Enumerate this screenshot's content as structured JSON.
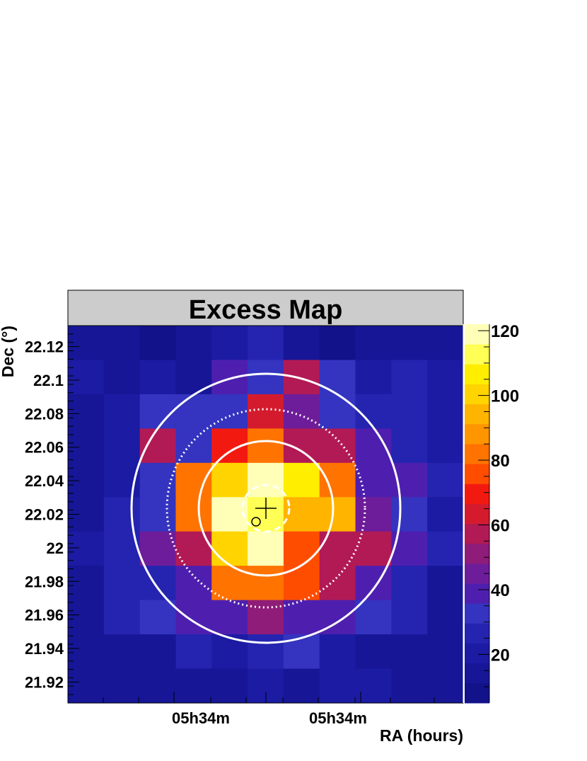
{
  "chart_data": {
    "type": "heatmap",
    "title": "Excess Map",
    "xlabel": "RA (hours)",
    "ylabel": "Dec (°)",
    "x_tick_labels": [
      "05h34m",
      "05h34m"
    ],
    "y_ticks": [
      21.92,
      21.94,
      21.96,
      21.98,
      22,
      22.02,
      22.04,
      22.06,
      22.08,
      22.1,
      22.12
    ],
    "y_tick_labels": [
      "21.92",
      "21.94",
      "21.96",
      "21.98",
      "22",
      "22.02",
      "22.04",
      "22.06",
      "22.08",
      "22.1",
      "22.12"
    ],
    "ylim": [
      21.9075,
      22.1325
    ],
    "n_cols": 11,
    "n_rows": 11,
    "zlim": [
      5,
      122
    ],
    "z_ticks": [
      20,
      40,
      60,
      80,
      100,
      120
    ],
    "z_tick_labels": [
      "20",
      "40",
      "60",
      "80",
      "100",
      "120"
    ],
    "rows_top_to_bottom": [
      [
        12,
        14,
        8,
        14,
        22,
        24,
        14,
        10,
        15,
        16,
        12
      ],
      [
        18,
        14,
        20,
        14,
        38,
        32,
        58,
        32,
        22,
        24,
        20
      ],
      [
        12,
        18,
        34,
        32,
        35,
        62,
        48,
        33,
        28,
        24,
        20
      ],
      [
        12,
        18,
        58,
        34,
        68,
        85,
        60,
        60,
        36,
        24,
        18
      ],
      [
        14,
        22,
        34,
        80,
        100,
        122,
        105,
        80,
        40,
        36,
        25
      ],
      [
        16,
        26,
        34,
        80,
        122,
        112,
        95,
        95,
        48,
        34,
        18
      ],
      [
        20,
        26,
        46,
        60,
        100,
        122,
        75,
        55,
        55,
        36,
        24
      ],
      [
        14,
        28,
        28,
        36,
        80,
        85,
        75,
        56,
        38,
        26,
        16
      ],
      [
        16,
        28,
        32,
        36,
        36,
        50,
        36,
        36,
        34,
        24,
        14
      ],
      [
        14,
        16,
        16,
        28,
        20,
        28,
        34,
        20,
        12,
        16,
        12
      ],
      [
        16,
        16,
        16,
        16,
        14,
        20,
        14,
        20,
        18,
        14,
        16
      ]
    ],
    "overlays": {
      "center_marker": "cross",
      "source_marker": "circle",
      "contours": [
        "solid-outer",
        "dotted",
        "solid-inner",
        "dashed-core"
      ]
    },
    "palette": [
      "#12128a",
      "#161697",
      "#1b1ba3",
      "#2424b0",
      "#3434c0",
      "#4e1faf",
      "#6e1d9a",
      "#8e1c78",
      "#b21a55",
      "#d41b2e",
      "#f21a10",
      "#ff4d00",
      "#ff7300",
      "#ff9600",
      "#ffb400",
      "#ffd400",
      "#ffee00",
      "#ffff55",
      "#ffffb8"
    ],
    "colors": {
      "title_box": "#cccccc",
      "overlay": "#ffffff",
      "marker": "#000000"
    }
  }
}
